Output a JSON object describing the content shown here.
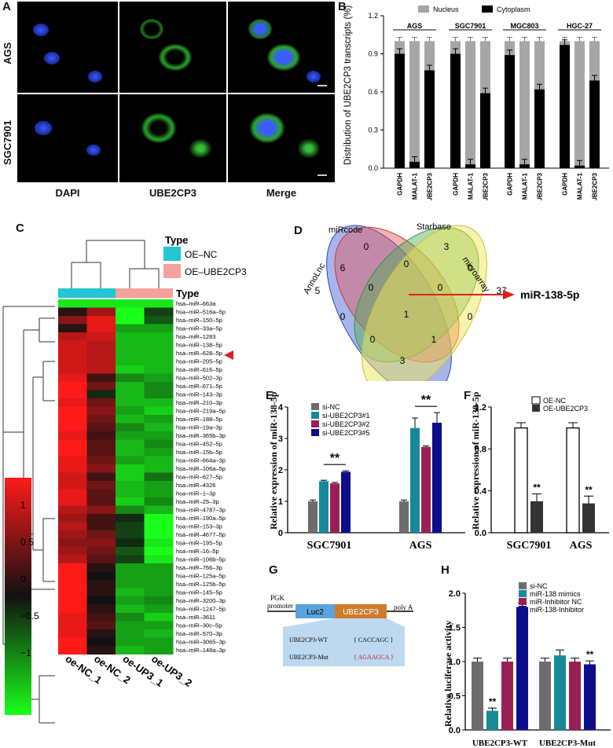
{
  "panelA": {
    "letter": "A",
    "rows": [
      "AGS",
      "SGC7901"
    ],
    "cols": [
      "DAPI",
      "UBE2CP3",
      "Merge"
    ]
  },
  "panelB": {
    "letter": "B",
    "ylabel": "Distribution of UBE2CP3 transcripts (%)",
    "legend": [
      "Nucleus",
      "Cytoplasm"
    ],
    "colors": {
      "nucleus": "#a6a6a6",
      "cytoplasm": "#000000"
    },
    "yticks": [
      "0.0",
      "0.3",
      "0.6",
      "0.9",
      "1.2"
    ],
    "groups": [
      {
        "name": "AGS",
        "genes": [
          "GAPDH",
          "MALAT-1",
          "UBE2CP3"
        ],
        "cytoplasm": [
          0.9,
          0.05,
          0.77
        ]
      },
      {
        "name": "SGC7901",
        "genes": [
          "GAPDH",
          "MALAT-1",
          "UBE2CP3"
        ],
        "cytoplasm": [
          0.9,
          0.03,
          0.59
        ]
      },
      {
        "name": "MGC803",
        "genes": [
          "GAPDH",
          "MALAT-1",
          "UBE2CP3"
        ],
        "cytoplasm": [
          0.89,
          0.03,
          0.62
        ]
      },
      {
        "name": "HGC-27",
        "genes": [
          "GAPDH",
          "MALAT-1",
          "UBE2CP3"
        ],
        "cytoplasm": [
          0.97,
          0.02,
          0.69
        ]
      }
    ]
  },
  "panelC": {
    "letter": "C",
    "type_title": "Type",
    "type_legend": [
      {
        "label": "OE–NC",
        "color": "#22c7d3"
      },
      {
        "label": "OE–UBE2CP3",
        "color": "#f5a29a"
      }
    ],
    "type_bar_label": "Type",
    "scale_labels": [
      "1",
      "0.5",
      "0",
      "−0.5",
      "−1"
    ],
    "samples": [
      "oe-NC_1",
      "oe-NC_2",
      "oe-UP3_1",
      "oe-UP3_2"
    ],
    "genes": [
      "hsa–miR–663a",
      "hsa–miR–516a–5p",
      "hsa–miR–150–5p",
      "hsa–miR–33a–5p",
      "hsa–miR–1283",
      "hsa–miR–138–5p",
      "hsa–miR–628–5p",
      "hsa–miR–205–5p",
      "hsa–miR–616–5p",
      "hsa–miR–502–3p",
      "hsa–miR–671–5p",
      "hsa–miR–143–3p",
      "hsa–miR–210–3p",
      "hsa–miR–219a–5p",
      "hsa–miR–188–5p",
      "hsa–miR–19a–3p",
      "hsa–miR–365b–3p",
      "hsa–miR–452–5p",
      "hsa–miR–15b–5p",
      "hsa–miR–664a–3p",
      "hsa–miR–106a–5p",
      "hsa–miR–627–5p",
      "hsa–miR–4326",
      "hsa–miR–1–3p",
      "hsa–miR–25–3p",
      "hsa–miR–4787–3p",
      "hsa–miR–190a–5p",
      "hsa–miR–153–3p",
      "hsa–miR–4677–5p",
      "hsa–miR–195–5p",
      "hsa–miR–16–5p",
      "hsa–miR–106b–5p",
      "hsa–miR–766–3p",
      "hsa–miR–125a–5p",
      "hsa–miR–125b–5p",
      "hsa–miR–145–5p",
      "hsa–miR–3200–3p",
      "hsa–miR–1247–5p",
      "hsa–miR–3611",
      "hsa–miR–30c–5p",
      "hsa–miR–570–3p",
      "hsa–miR–3065–3p",
      "hsa–miR–148a–3p"
    ],
    "values": [
      [
        -0.9,
        -0.9,
        -0.9,
        -0.9
      ],
      [
        0.1,
        0.6,
        -1,
        -0.2
      ],
      [
        0.5,
        0.9,
        -1,
        -0.3
      ],
      [
        0.1,
        0.9,
        -0.6,
        -0.6
      ],
      [
        0.7,
        0.8,
        -0.7,
        -0.7
      ],
      [
        0.8,
        0.7,
        -0.7,
        -0.7
      ],
      [
        0.8,
        0.7,
        -0.7,
        -0.7
      ],
      [
        0.8,
        0.7,
        -0.7,
        -0.7
      ],
      [
        0.8,
        0.7,
        -0.8,
        -0.7
      ],
      [
        0.9,
        0.2,
        -0.5,
        -0.6
      ],
      [
        1,
        0.4,
        -0.7,
        -0.5
      ],
      [
        1,
        -0.1,
        -0.7,
        -0.5
      ],
      [
        0.9,
        0.4,
        -0.7,
        -0.7
      ],
      [
        1,
        0.5,
        -0.6,
        -0.8
      ],
      [
        1,
        0.4,
        -0.7,
        -0.6
      ],
      [
        1,
        0.3,
        -0.5,
        -0.7
      ],
      [
        0.9,
        0.2,
        -0.6,
        -0.6
      ],
      [
        1,
        0.3,
        -0.7,
        -0.5
      ],
      [
        1,
        0.3,
        -0.7,
        -0.6
      ],
      [
        0.9,
        0.4,
        -0.6,
        -0.7
      ],
      [
        0.9,
        0.5,
        -0.8,
        -0.7
      ],
      [
        0.8,
        0.2,
        -0.8,
        -0.4
      ],
      [
        0.8,
        0.4,
        -0.7,
        -0.6
      ],
      [
        0.9,
        0.3,
        -0.7,
        -0.6
      ],
      [
        0.9,
        0.3,
        -0.8,
        -0.5
      ],
      [
        0.7,
        0.5,
        -0.5,
        -0.7
      ],
      [
        0.6,
        0.2,
        -0.1,
        -1
      ],
      [
        0.7,
        0.2,
        -0.2,
        -1
      ],
      [
        0.6,
        0.4,
        -0.2,
        -1
      ],
      [
        0.5,
        0.5,
        -0.1,
        -0.9
      ],
      [
        0.6,
        0.4,
        -0.3,
        -1
      ],
      [
        0.7,
        0.3,
        -0.2,
        -0.9
      ],
      [
        1,
        0.1,
        -0.6,
        -0.6
      ],
      [
        1,
        0.0,
        -0.6,
        -0.6
      ],
      [
        1,
        0.1,
        -0.6,
        -0.6
      ],
      [
        1,
        0.1,
        -0.7,
        -0.6
      ],
      [
        1,
        0.0,
        -0.6,
        -0.5
      ],
      [
        1,
        0.1,
        -0.7,
        -0.6
      ],
      [
        0.9,
        0.2,
        -0.5,
        -0.8
      ],
      [
        0.9,
        0.3,
        -0.6,
        -0.6
      ],
      [
        0.9,
        0.1,
        -0.6,
        -0.7
      ],
      [
        1,
        0.0,
        -0.6,
        -0.6
      ],
      [
        1,
        0.1,
        -0.7,
        -0.6
      ]
    ]
  },
  "panelD": {
    "letter": "D",
    "sets": [
      "AnnoLnc",
      "miRcode",
      "Starbase",
      "microarray"
    ],
    "counts": [
      "0",
      "3",
      "6",
      "0",
      "0",
      "5",
      "0",
      "0",
      "37",
      "0",
      "1",
      "0",
      "0",
      "1",
      "3"
    ],
    "result": "miR-138-5p"
  },
  "panelE": {
    "letter": "E",
    "ylabel": "Relative expression of miR-138-5p",
    "yticks": [
      "0",
      "1",
      "2",
      "3",
      "4"
    ],
    "categories": [
      "SGC7901",
      "AGS"
    ],
    "series": [
      {
        "name": "si-NC",
        "color": "#6d6d6d",
        "values": [
          1.0,
          1.0
        ]
      },
      {
        "name": "si-UBE2CP3#1",
        "color": "#168a99",
        "values": [
          1.64,
          3.33
        ]
      },
      {
        "name": "si-UBE2CP3#2",
        "color": "#9b1f57",
        "values": [
          1.57,
          2.73
        ]
      },
      {
        "name": "si-UBE2CP3#5",
        "color": "#0d0d8c",
        "values": [
          1.94,
          3.5
        ]
      }
    ],
    "sig": [
      "**",
      "**"
    ]
  },
  "panelF": {
    "letter": "F",
    "ylabel": "Relative expression of miR-138-5p",
    "yticks": [
      "0.0",
      "0.4",
      "0.8",
      "1.2"
    ],
    "categories": [
      "SGC7901",
      "AGS"
    ],
    "series": [
      {
        "name": "OE-NC",
        "color": "#ffffff",
        "values": [
          1.0,
          1.0
        ]
      },
      {
        "name": "OE-UBE2CP3",
        "color": "#333333",
        "values": [
          0.3,
          0.28
        ]
      }
    ],
    "sig": [
      "**",
      "**"
    ]
  },
  "panelG": {
    "letter": "G",
    "promoter": [
      "PGK",
      "promoter"
    ],
    "luc": "Luc2",
    "ube": "UBE2CP3",
    "polya": "poly A",
    "wt_label": "UBE2CP3-WT",
    "wt_seq": "{ CACCAGC }",
    "mut_label": "UBE2CP3-Mut",
    "mut_seq": "{ AGAAGCA }"
  },
  "panelH": {
    "letter": "H",
    "ylabel": "Relative luciferase activity",
    "yticks": [
      "0.0",
      "0.5",
      "1.0",
      "1.5",
      "2.0"
    ],
    "categories": [
      "UBE2CP3-WT",
      "UBE2CP3-Mut"
    ],
    "series": [
      {
        "name": "si-NC",
        "color": "#6d6d6d",
        "values": [
          1.0,
          1.0
        ]
      },
      {
        "name": "miR-138 mimics",
        "color": "#168a99",
        "values": [
          0.28,
          1.09
        ]
      },
      {
        "name": "miR-Inhibitor NC",
        "color": "#9b1f57",
        "values": [
          1.0,
          1.0
        ]
      },
      {
        "name": "miR-138-Inhibitor",
        "color": "#0d0d8c",
        "values": [
          1.8,
          0.96
        ]
      }
    ],
    "sig": [
      "**",
      "**"
    ]
  }
}
